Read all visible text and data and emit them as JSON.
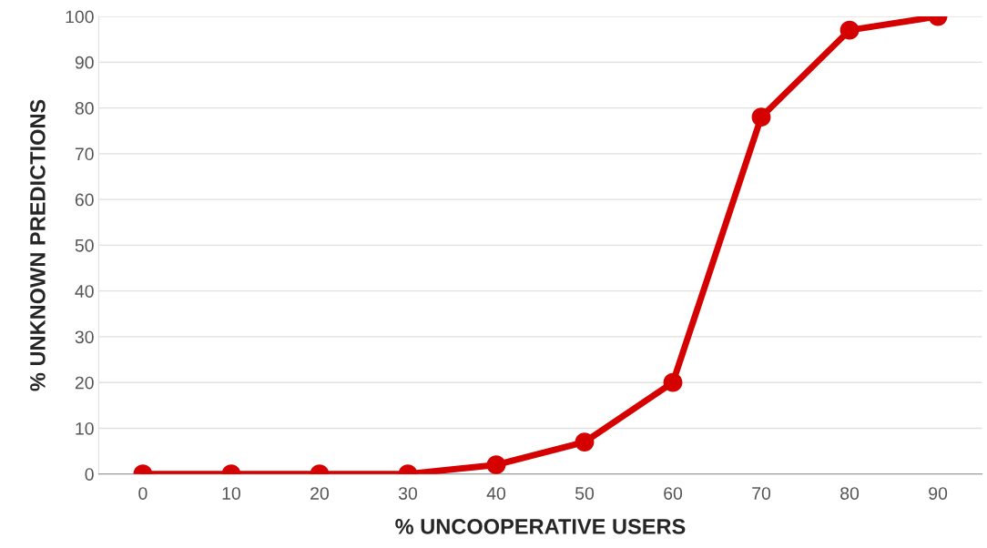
{
  "chart_data": {
    "type": "line",
    "xlabel": "% UNCOOPERATIVE USERS",
    "ylabel": "% UNKNOWN PREDICTIONS",
    "categories": [
      "0",
      "10",
      "20",
      "30",
      "40",
      "50",
      "60",
      "70",
      "80",
      "90"
    ],
    "series": [
      {
        "color": "#d50000",
        "values": [
          0,
          0,
          0,
          0,
          2,
          7,
          20,
          78,
          97,
          100
        ]
      }
    ],
    "ylim": [
      0,
      100
    ],
    "yticks": [
      0,
      10,
      20,
      30,
      40,
      50,
      60,
      70,
      80,
      90,
      100
    ],
    "grid": "y",
    "marker": "circle",
    "line_style": "solid",
    "legend": false
  }
}
